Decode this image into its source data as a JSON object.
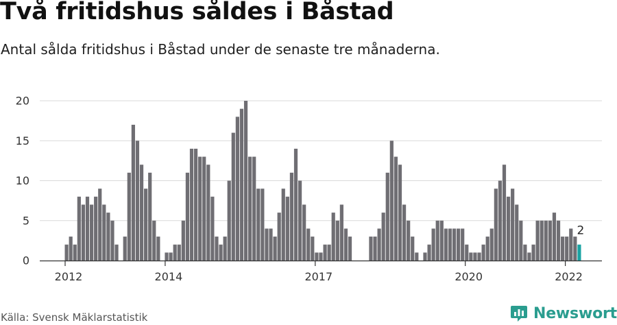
{
  "header": {
    "title": "Två fritidshus såldes i Båstad",
    "subtitle": "Antal sålda fritidshus i Båstad under de senaste tre månaderna."
  },
  "footer": {
    "source": "Källa: Svensk Mäklarstatistik",
    "brand": "Newsworthy"
  },
  "colors": {
    "bar": "#6f6e73",
    "highlight": "#1aa3a3",
    "brand": "#2a9d8f",
    "grid": "#d9d9d9"
  },
  "icons": {
    "brand": "newsworthy-logo-icon"
  },
  "chart_data": {
    "type": "bar",
    "title": "Två fritidshus såldes i Båstad",
    "subtitle": "Antal sålda fritidshus i Båstad under de senaste tre månaderna.",
    "x_ticks": [
      "2012",
      "2014",
      "2017",
      "2020",
      "2022"
    ],
    "y_ticks": [
      0,
      5,
      10,
      15,
      20
    ],
    "ylim": [
      0,
      20
    ],
    "grid": true,
    "start": "2012-01",
    "frequency": "monthly (rolling three-month totals)",
    "values": [
      2,
      3,
      2,
      8,
      7,
      8,
      7,
      8,
      9,
      7,
      6,
      5,
      2,
      0,
      3,
      11,
      17,
      15,
      12,
      9,
      11,
      5,
      3,
      0,
      1,
      1,
      2,
      2,
      5,
      11,
      14,
      14,
      13,
      13,
      12,
      8,
      3,
      2,
      3,
      10,
      16,
      18,
      19,
      20,
      13,
      13,
      9,
      9,
      4,
      4,
      3,
      6,
      9,
      8,
      11,
      14,
      10,
      7,
      4,
      3,
      1,
      1,
      2,
      2,
      6,
      5,
      7,
      4,
      3,
      0,
      0,
      0,
      0,
      3,
      3,
      4,
      6,
      11,
      15,
      13,
      12,
      7,
      5,
      3,
      1,
      0,
      1,
      2,
      4,
      5,
      5,
      4,
      4,
      4,
      4,
      4,
      2,
      1,
      1,
      1,
      2,
      3,
      4,
      9,
      10,
      12,
      8,
      9,
      7,
      5,
      2,
      1,
      2,
      5,
      5,
      5,
      5,
      6,
      5,
      3,
      3,
      4,
      3,
      2
    ],
    "highlight_last": true,
    "last_label": "2"
  }
}
